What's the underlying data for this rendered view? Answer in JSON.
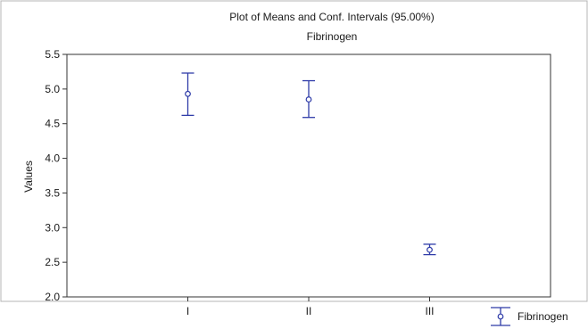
{
  "chart_data": {
    "type": "errorbar",
    "title": "Plot of Means and Conf. Intervals (95.00%)",
    "subtitle": "Fibrinogen",
    "xlabel": "",
    "ylabel": "Values",
    "categories": [
      "I",
      "II",
      "III"
    ],
    "ylim": [
      2.0,
      5.5
    ],
    "yticks": [
      "2.0",
      "2.5",
      "3.0",
      "3.5",
      "4.0",
      "4.5",
      "5.0",
      "5.5"
    ],
    "grid": false,
    "legend": "bottom-right",
    "series": [
      {
        "name": "Fibrinogen",
        "means": [
          4.93,
          4.85,
          2.68
        ],
        "lower": [
          4.62,
          4.59,
          2.61
        ],
        "upper": [
          5.23,
          5.12,
          2.76
        ]
      }
    ]
  },
  "colors": {
    "series": "#2e3ba8",
    "axis": "#333333",
    "frame": "#b4b4b4"
  }
}
